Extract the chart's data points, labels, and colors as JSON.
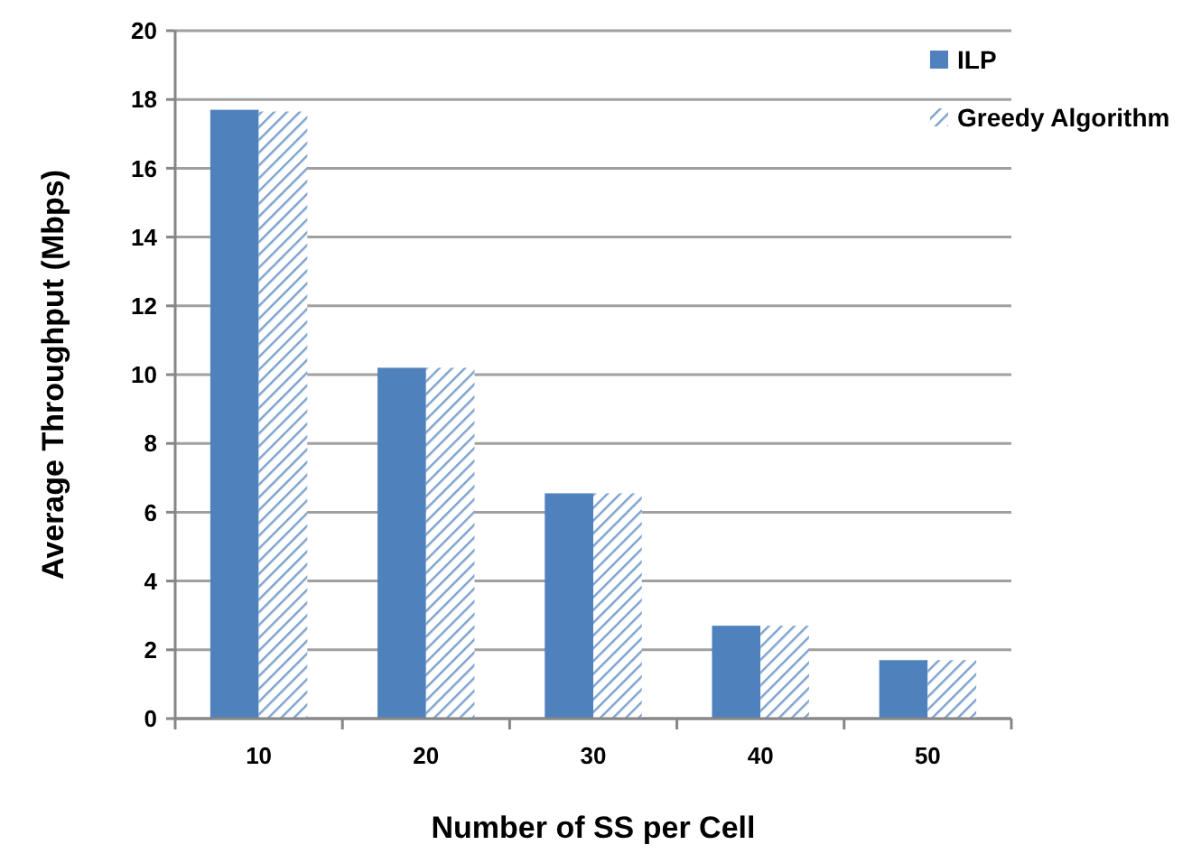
{
  "chart_data": {
    "type": "bar",
    "xlabel": "Number of SS per Cell",
    "ylabel": "Average Throughput (Mbps)",
    "categories": [
      "10",
      "20",
      "30",
      "40",
      "50"
    ],
    "series": [
      {
        "name": "ILP",
        "color": "#4f81bd",
        "values": [
          17.7,
          10.2,
          6.55,
          2.7,
          1.7
        ]
      },
      {
        "name": "Greedy Algorithm",
        "color": "#4f81bd",
        "values": [
          17.65,
          10.2,
          6.55,
          2.7,
          1.7
        ]
      }
    ],
    "ylim": [
      0,
      20
    ],
    "yticks": [
      0,
      2,
      4,
      6,
      8,
      10,
      12,
      14,
      16,
      18,
      20
    ],
    "grid": "y",
    "legend": "top right"
  }
}
